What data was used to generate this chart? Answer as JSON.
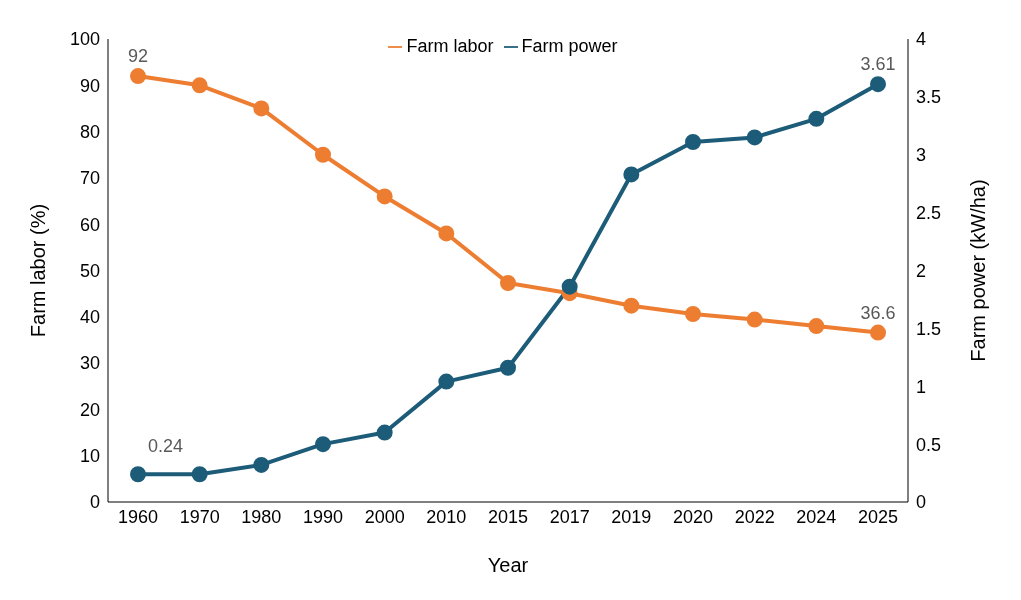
{
  "chart_data": {
    "type": "line",
    "xlabel": "Year",
    "ylabel": "Farm labor (%)",
    "y2label": "Farm power (kW/ha)",
    "categories": [
      "1960",
      "1970",
      "1980",
      "1990",
      "2000",
      "2010",
      "2015",
      "2017",
      "2019",
      "2020",
      "2022",
      "2024",
      "2025"
    ],
    "series": [
      {
        "name": "Farm labor",
        "color": "#ed7d31",
        "values": [
          92,
          90,
          85,
          75,
          66,
          58,
          47.3,
          45.1,
          42.4,
          40.6,
          39.4,
          38,
          36.6
        ],
        "value_labels": [
          "92",
          null,
          null,
          null,
          null,
          null,
          null,
          null,
          null,
          null,
          null,
          null,
          "36.6"
        ]
      },
      {
        "name": "Farm power",
        "color": "#1d5c78",
        "axis": "y2",
        "values": [
          0.24,
          0.24,
          0.32,
          0.5,
          0.6,
          1.04,
          1.16,
          1.86,
          2.83,
          3.11,
          3.15,
          3.31,
          3.61
        ],
        "value_labels": [
          "0.24",
          null,
          null,
          null,
          null,
          null,
          null,
          null,
          null,
          null,
          null,
          null,
          "3.61"
        ]
      }
    ],
    "ylim": [
      0,
      100
    ],
    "yticks": [
      0,
      10,
      20,
      30,
      40,
      50,
      60,
      70,
      80,
      90,
      100
    ],
    "y2lim": [
      0,
      4
    ],
    "y2ticks": [
      0,
      0.5,
      1,
      1.5,
      2,
      2.5,
      3,
      3.5,
      4
    ],
    "legend": "top",
    "marker": "circle",
    "line_style": "solid",
    "grid": false
  }
}
